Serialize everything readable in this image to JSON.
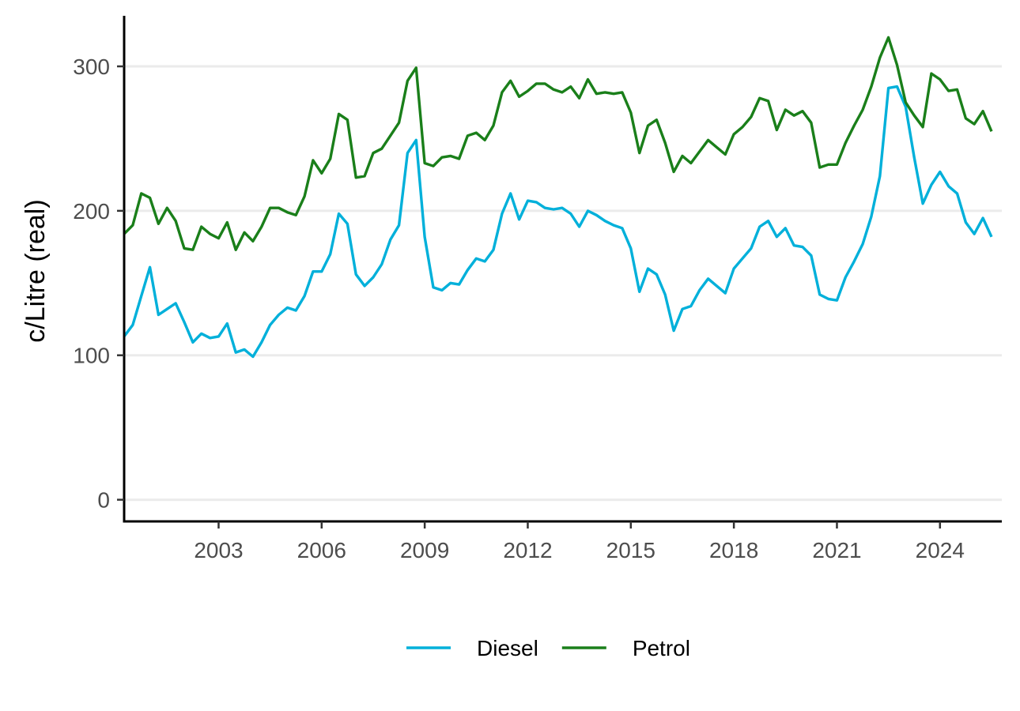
{
  "chart_data": {
    "type": "line",
    "title": "",
    "xlabel": "",
    "ylabel": "c/Litre (real)",
    "xlim": [
      2000.25,
      2025.8
    ],
    "ylim": [
      -15,
      335
    ],
    "x_ticks": [
      2003,
      2006,
      2009,
      2012,
      2015,
      2018,
      2021,
      2024
    ],
    "x_tick_labels": [
      "2003",
      "2006",
      "2009",
      "2012",
      "2015",
      "2018",
      "2021",
      "2024"
    ],
    "y_ticks": [
      0,
      100,
      200,
      300
    ],
    "y_tick_labels": [
      "0",
      "100",
      "200",
      "300"
    ],
    "grid": "horizontal",
    "legend_position": "bottom",
    "x": [
      2000.25,
      2000.5,
      2000.75,
      2001.0,
      2001.25,
      2001.5,
      2001.75,
      2002.0,
      2002.25,
      2002.5,
      2002.75,
      2003.0,
      2003.25,
      2003.5,
      2003.75,
      2004.0,
      2004.25,
      2004.5,
      2004.75,
      2005.0,
      2005.25,
      2005.5,
      2005.75,
      2006.0,
      2006.25,
      2006.5,
      2006.75,
      2007.0,
      2007.25,
      2007.5,
      2007.75,
      2008.0,
      2008.25,
      2008.5,
      2008.75,
      2009.0,
      2009.25,
      2009.5,
      2009.75,
      2010.0,
      2010.25,
      2010.5,
      2010.75,
      2011.0,
      2011.25,
      2011.5,
      2011.75,
      2012.0,
      2012.25,
      2012.5,
      2012.75,
      2013.0,
      2013.25,
      2013.5,
      2013.75,
      2014.0,
      2014.25,
      2014.5,
      2014.75,
      2015.0,
      2015.25,
      2015.5,
      2015.75,
      2016.0,
      2016.25,
      2016.5,
      2016.75,
      2017.0,
      2017.25,
      2017.5,
      2017.75,
      2018.0,
      2018.25,
      2018.5,
      2018.75,
      2019.0,
      2019.25,
      2019.5,
      2019.75,
      2020.0,
      2020.25,
      2020.5,
      2020.75,
      2021.0,
      2021.25,
      2021.5,
      2021.75,
      2022.0,
      2022.25,
      2022.5,
      2022.75,
      2023.0,
      2023.25,
      2023.5,
      2023.75,
      2024.0,
      2024.25,
      2024.5,
      2024.75,
      2025.0,
      2025.25,
      2025.5
    ],
    "series": [
      {
        "name": "Diesel",
        "color": "#00B0DA",
        "values": [
          113,
          121,
          141,
          161,
          128,
          132,
          136,
          123,
          109,
          115,
          112,
          113,
          122,
          102,
          104,
          99,
          109,
          121,
          128,
          133,
          131,
          141,
          158,
          158,
          170,
          198,
          191,
          156,
          148,
          154,
          163,
          180,
          190,
          240,
          249,
          182,
          147,
          145,
          150,
          149,
          159,
          167,
          165,
          173,
          198,
          212,
          194,
          207,
          206,
          202,
          201,
          202,
          198,
          189,
          200,
          197,
          193,
          190,
          188,
          174,
          144,
          160,
          156,
          142,
          117,
          132,
          134,
          145,
          153,
          148,
          143,
          160,
          167,
          174,
          189,
          193,
          182,
          188,
          176,
          175,
          169,
          142,
          139,
          138,
          154,
          165,
          177,
          196,
          224,
          285,
          286,
          272,
          237,
          205,
          218,
          227,
          217,
          212,
          192,
          184,
          195,
          182
        ]
      },
      {
        "name": "Petrol",
        "color": "#1A7F1A",
        "values": [
          184,
          190,
          212,
          209,
          191,
          202,
          193,
          174,
          173,
          189,
          184,
          181,
          192,
          173,
          185,
          179,
          189,
          202,
          202,
          199,
          197,
          210,
          235,
          226,
          236,
          267,
          263,
          223,
          224,
          240,
          243,
          252,
          261,
          290,
          299,
          233,
          231,
          237,
          238,
          236,
          252,
          254,
          249,
          259,
          282,
          290,
          279,
          283,
          288,
          288,
          284,
          282,
          286,
          278,
          291,
          281,
          282,
          281,
          282,
          268,
          240,
          259,
          263,
          247,
          227,
          238,
          233,
          241,
          249,
          244,
          239,
          253,
          258,
          265,
          278,
          276,
          256,
          270,
          266,
          269,
          261,
          230,
          232,
          232,
          247,
          259,
          270,
          286,
          306,
          320,
          301,
          275,
          266,
          258,
          295,
          291,
          283,
          284,
          264,
          260,
          269,
          255
        ]
      }
    ]
  }
}
